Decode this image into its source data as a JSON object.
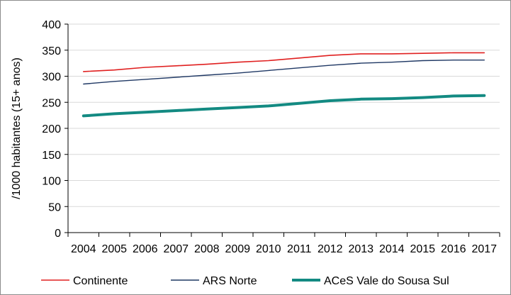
{
  "chart_data": {
    "type": "line",
    "title": "",
    "xlabel": "",
    "ylabel": "/1000 habitantes (15+ anos)",
    "ylim": [
      0,
      400
    ],
    "yticks": [
      0,
      50,
      100,
      150,
      200,
      250,
      300,
      350,
      400
    ],
    "grid": true,
    "legend_position": "bottom",
    "categories": [
      "2004",
      "2005",
      "2006",
      "2007",
      "2008",
      "2009",
      "2010",
      "2011",
      "2012",
      "2013",
      "2014",
      "2015",
      "2016",
      "2017"
    ],
    "series": [
      {
        "name": "Continente",
        "color": "#e02020",
        "line_width": 1.6,
        "values": [
          309,
          312,
          317,
          320,
          323,
          327,
          330,
          335,
          340,
          343,
          343,
          344,
          345,
          345
        ]
      },
      {
        "name": "ARS Norte",
        "color": "#1f3864",
        "line_width": 1.4,
        "values": [
          285,
          290,
          294,
          298,
          302,
          306,
          311,
          316,
          321,
          325,
          327,
          330,
          331,
          331
        ]
      },
      {
        "name": "ACeS Vale do Sousa Sul",
        "color": "#138a82",
        "line_width": 4,
        "values": [
          224,
          228,
          231,
          234,
          237,
          240,
          243,
          248,
          253,
          256,
          257,
          259,
          262,
          263
        ]
      }
    ]
  }
}
